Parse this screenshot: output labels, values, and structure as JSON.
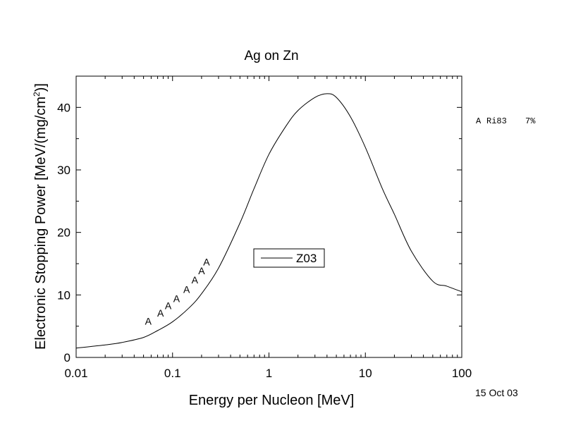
{
  "chart_data": {
    "type": "line",
    "title": "Ag on Zn",
    "xlabel": "Energy per Nucleon [MeV]",
    "ylabel_main": "Electronic Stopping Power [MeV/(mg/cm",
    "ylabel_sup": "2",
    "ylabel_tail": ")]",
    "xscale": "log",
    "xlim": [
      0.01,
      100
    ],
    "ylim": [
      0,
      45
    ],
    "x_ticks": [
      {
        "value": 0.01,
        "label": "0.01"
      },
      {
        "value": 0.1,
        "label": "0.1"
      },
      {
        "value": 1,
        "label": "1"
      },
      {
        "value": 10,
        "label": "10"
      },
      {
        "value": 100,
        "label": "100"
      }
    ],
    "y_ticks": [
      {
        "value": 0,
        "label": "0"
      },
      {
        "value": 10,
        "label": "10"
      },
      {
        "value": 20,
        "label": "20"
      },
      {
        "value": 30,
        "label": "30"
      },
      {
        "value": 40,
        "label": "40"
      }
    ],
    "legend": {
      "placement": "center",
      "entries": [
        "Z03"
      ]
    },
    "series": [
      {
        "name": "Z03",
        "style": "line",
        "color": "#000000",
        "x": [
          0.01,
          0.02,
          0.03,
          0.05,
          0.07,
          0.1,
          0.15,
          0.2,
          0.3,
          0.5,
          0.7,
          1,
          1.5,
          2,
          3,
          4,
          5,
          7,
          10,
          15,
          20,
          30,
          50,
          70,
          100
        ],
        "y": [
          1.5,
          2.0,
          2.4,
          3.2,
          4.3,
          5.7,
          8.0,
          10.2,
          14.3,
          21.5,
          27.0,
          32.5,
          37.0,
          39.5,
          41.6,
          42.2,
          41.6,
          38.5,
          33.6,
          27.0,
          22.9,
          17.0,
          12.2,
          11.4,
          10.5
        ]
      },
      {
        "name": "A",
        "style": "marker",
        "marker": "A",
        "x": [
          0.056,
          0.075,
          0.09,
          0.11,
          0.14,
          0.17,
          0.2,
          0.225
        ],
        "y": [
          5.8,
          7.1,
          8.3,
          9.4,
          10.9,
          12.4,
          13.9,
          15.3
        ]
      }
    ],
    "side_note": {
      "symbol": "A",
      "ref": "Ri83",
      "value": "7%"
    },
    "date_stamp": "15 Oct 03"
  }
}
